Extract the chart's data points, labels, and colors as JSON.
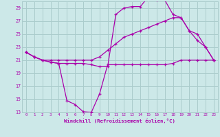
{
  "background_color": "#cce8e8",
  "grid_color": "#aacccc",
  "line_color": "#aa00aa",
  "xlabel": "Windchill (Refroidissement éolien,°C)",
  "xlim": [
    -0.5,
    23.5
  ],
  "ylim": [
    13,
    30
  ],
  "yticks": [
    13,
    15,
    17,
    19,
    21,
    23,
    25,
    27,
    29
  ],
  "xticks": [
    0,
    1,
    2,
    3,
    4,
    5,
    6,
    7,
    8,
    9,
    10,
    11,
    12,
    13,
    14,
    15,
    16,
    17,
    18,
    19,
    20,
    21,
    22,
    23
  ],
  "curve1_x": [
    0,
    1,
    2,
    3,
    4,
    5,
    6,
    7,
    8,
    9,
    10,
    11,
    12,
    13,
    14,
    15,
    16,
    17,
    18,
    19,
    20,
    21,
    22,
    23
  ],
  "curve1_y": [
    22.2,
    21.5,
    21.0,
    20.7,
    20.5,
    14.8,
    14.2,
    13.1,
    13.0,
    15.8,
    20.3,
    20.3,
    20.3,
    20.3,
    20.3,
    20.3,
    20.3,
    20.3,
    20.5,
    21.0,
    21.0,
    21.0,
    21.0,
    21.0
  ],
  "curve2_x": [
    0,
    1,
    2,
    3,
    4,
    5,
    6,
    7,
    8,
    9,
    10,
    11,
    12,
    13,
    14,
    15,
    16,
    17,
    18,
    19,
    20,
    21,
    22,
    23
  ],
  "curve2_y": [
    22.2,
    21.5,
    21.0,
    20.7,
    20.5,
    20.5,
    20.5,
    20.5,
    20.3,
    20.0,
    20.0,
    28.0,
    29.0,
    29.2,
    29.2,
    30.7,
    30.2,
    30.2,
    28.0,
    27.5,
    25.5,
    24.0,
    23.0,
    21.0
  ],
  "curve3_x": [
    0,
    1,
    2,
    3,
    4,
    5,
    6,
    7,
    8,
    9,
    10,
    11,
    12,
    13,
    14,
    15,
    16,
    17,
    18,
    19,
    20,
    21,
    22,
    23
  ],
  "curve3_y": [
    22.2,
    21.5,
    21.0,
    21.0,
    21.0,
    21.0,
    21.0,
    21.0,
    21.0,
    21.5,
    22.5,
    23.5,
    24.5,
    25.0,
    25.5,
    26.0,
    26.5,
    27.0,
    27.5,
    27.5,
    25.5,
    25.0,
    23.0,
    21.0
  ]
}
